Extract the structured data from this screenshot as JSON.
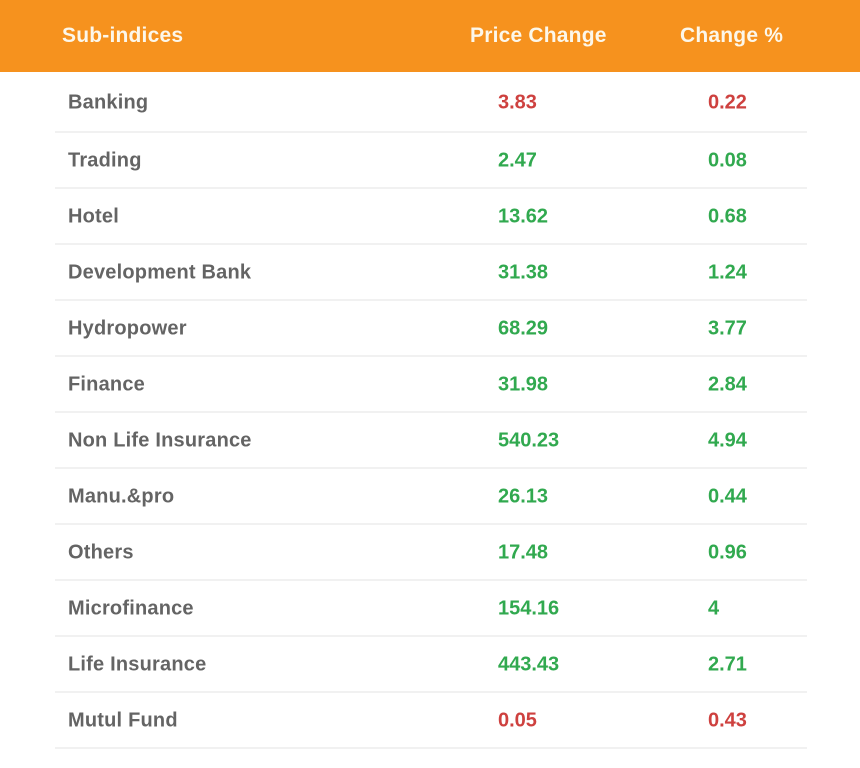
{
  "header": {
    "columns": [
      "Sub-indices",
      "Price Change",
      "Change %"
    ]
  },
  "table": {
    "rows": [
      {
        "label": "Banking",
        "price_change": "3.83",
        "change_pct": "0.22",
        "direction": "down"
      },
      {
        "label": "Trading",
        "price_change": "2.47",
        "change_pct": "0.08",
        "direction": "up"
      },
      {
        "label": "Hotel",
        "price_change": "13.62",
        "change_pct": "0.68",
        "direction": "up"
      },
      {
        "label": "Development Bank",
        "price_change": "31.38",
        "change_pct": "1.24",
        "direction": "up"
      },
      {
        "label": "Hydropower",
        "price_change": "68.29",
        "change_pct": "3.77",
        "direction": "up"
      },
      {
        "label": "Finance",
        "price_change": "31.98",
        "change_pct": "2.84",
        "direction": "up"
      },
      {
        "label": "Non Life Insurance",
        "price_change": "540.23",
        "change_pct": "4.94",
        "direction": "up"
      },
      {
        "label": "Manu.&pro",
        "price_change": "26.13",
        "change_pct": "0.44",
        "direction": "up"
      },
      {
        "label": "Others",
        "price_change": "17.48",
        "change_pct": "0.96",
        "direction": "up"
      },
      {
        "label": "Microfinance",
        "price_change": "154.16",
        "change_pct": "4",
        "direction": "up"
      },
      {
        "label": "Life Insurance",
        "price_change": "443.43",
        "change_pct": "2.71",
        "direction": "up"
      },
      {
        "label": "Mutul Fund",
        "price_change": "0.05",
        "change_pct": "0.43",
        "direction": "down"
      }
    ]
  },
  "colors": {
    "header_bg": "#f6921e",
    "header_text": "#fcf7ea",
    "row_label": "#646464",
    "positive": "#31a94f",
    "negative": "#ce413f",
    "divider": "#f1f1f1",
    "background": "#ffffff"
  },
  "chart_data": {
    "type": "table",
    "columns": [
      "Sub-indices",
      "Price Change",
      "Change %"
    ],
    "rows": [
      [
        "Banking",
        3.83,
        0.22
      ],
      [
        "Trading",
        2.47,
        0.08
      ],
      [
        "Hotel",
        13.62,
        0.68
      ],
      [
        "Development Bank",
        31.38,
        1.24
      ],
      [
        "Hydropower",
        68.29,
        3.77
      ],
      [
        "Finance",
        31.98,
        2.84
      ],
      [
        "Non Life Insurance",
        540.23,
        4.94
      ],
      [
        "Manu.&pro",
        26.13,
        0.44
      ],
      [
        "Others",
        17.48,
        0.96
      ],
      [
        "Microfinance",
        154.16,
        4
      ],
      [
        "Life Insurance",
        443.43,
        2.71
      ],
      [
        "Mutul Fund",
        0.05,
        0.43
      ]
    ],
    "notes": "Values colored green for positive change, red for negative change (Banking and Mutul Fund rows are red)."
  }
}
